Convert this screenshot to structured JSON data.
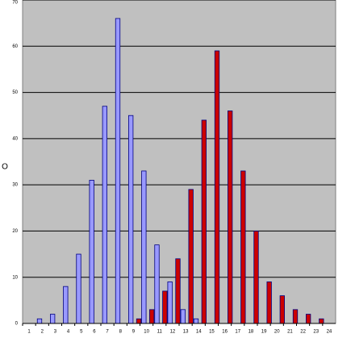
{
  "chart_data": {
    "type": "bar",
    "y_label": "O",
    "categories": [
      "1",
      "2",
      "3",
      "4",
      "5",
      "6",
      "7",
      "8",
      "9",
      "10",
      "11",
      "12",
      "13",
      "14",
      "15",
      "16",
      "17",
      "18",
      "19",
      "20",
      "21",
      "22",
      "23",
      "24"
    ],
    "series": [
      {
        "color": "#9999ff",
        "values": [
          0,
          1,
          2,
          8,
          15,
          31,
          47,
          66,
          45,
          33,
          17,
          9,
          3,
          1,
          0,
          0,
          0,
          0,
          0,
          0,
          0,
          0,
          0,
          0
        ]
      },
      {
        "color": "#cc0000",
        "values": [
          0,
          0,
          0,
          0,
          0,
          0,
          0,
          0,
          1,
          3,
          7,
          14,
          29,
          44,
          59,
          46,
          33,
          20,
          9,
          6,
          3,
          2,
          1,
          0
        ]
      }
    ],
    "ylim": [
      0,
      70
    ],
    "yticks": [
      0,
      10,
      20,
      30,
      40,
      50,
      60,
      70
    ],
    "grid": true
  }
}
